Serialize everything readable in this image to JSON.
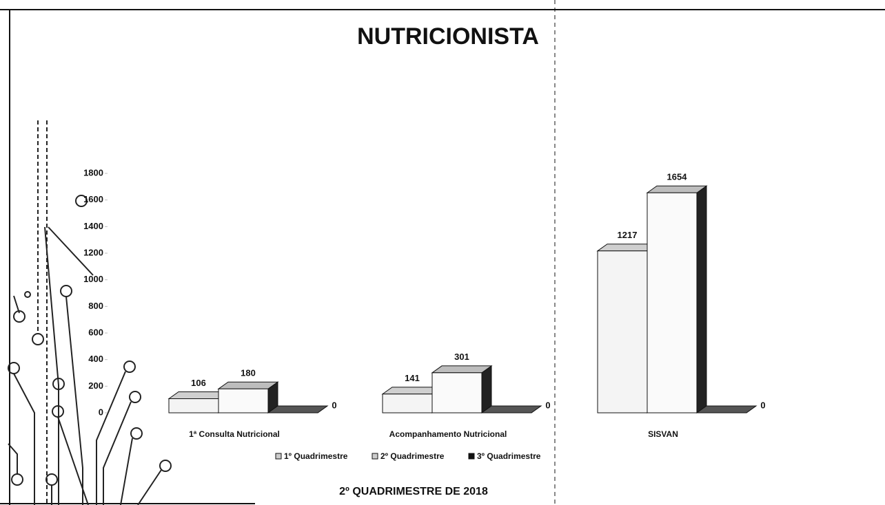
{
  "chart_data": {
    "type": "bar3d",
    "title": "NUTRICIONISTA",
    "subtitle": "2º QUADRIMESTRE DE 2018",
    "categories": [
      "1ª Consulta Nutricional",
      "Acompanhamento Nutricional",
      "SISVAN"
    ],
    "series": [
      {
        "name": "1º Quadrimestre",
        "color": "#f4f4f4",
        "values": [
          106,
          141,
          1217
        ]
      },
      {
        "name": "2º Quadrimestre",
        "color": "#fafafa",
        "values": [
          180,
          301,
          1654
        ]
      },
      {
        "name": "3º Quadrimestre",
        "color": "#111111",
        "values": [
          0,
          0,
          0
        ]
      }
    ],
    "ylim": [
      0,
      1800
    ],
    "yticks": [
      0,
      200,
      400,
      600,
      800,
      1000,
      1200,
      1400,
      1600,
      1800
    ]
  }
}
